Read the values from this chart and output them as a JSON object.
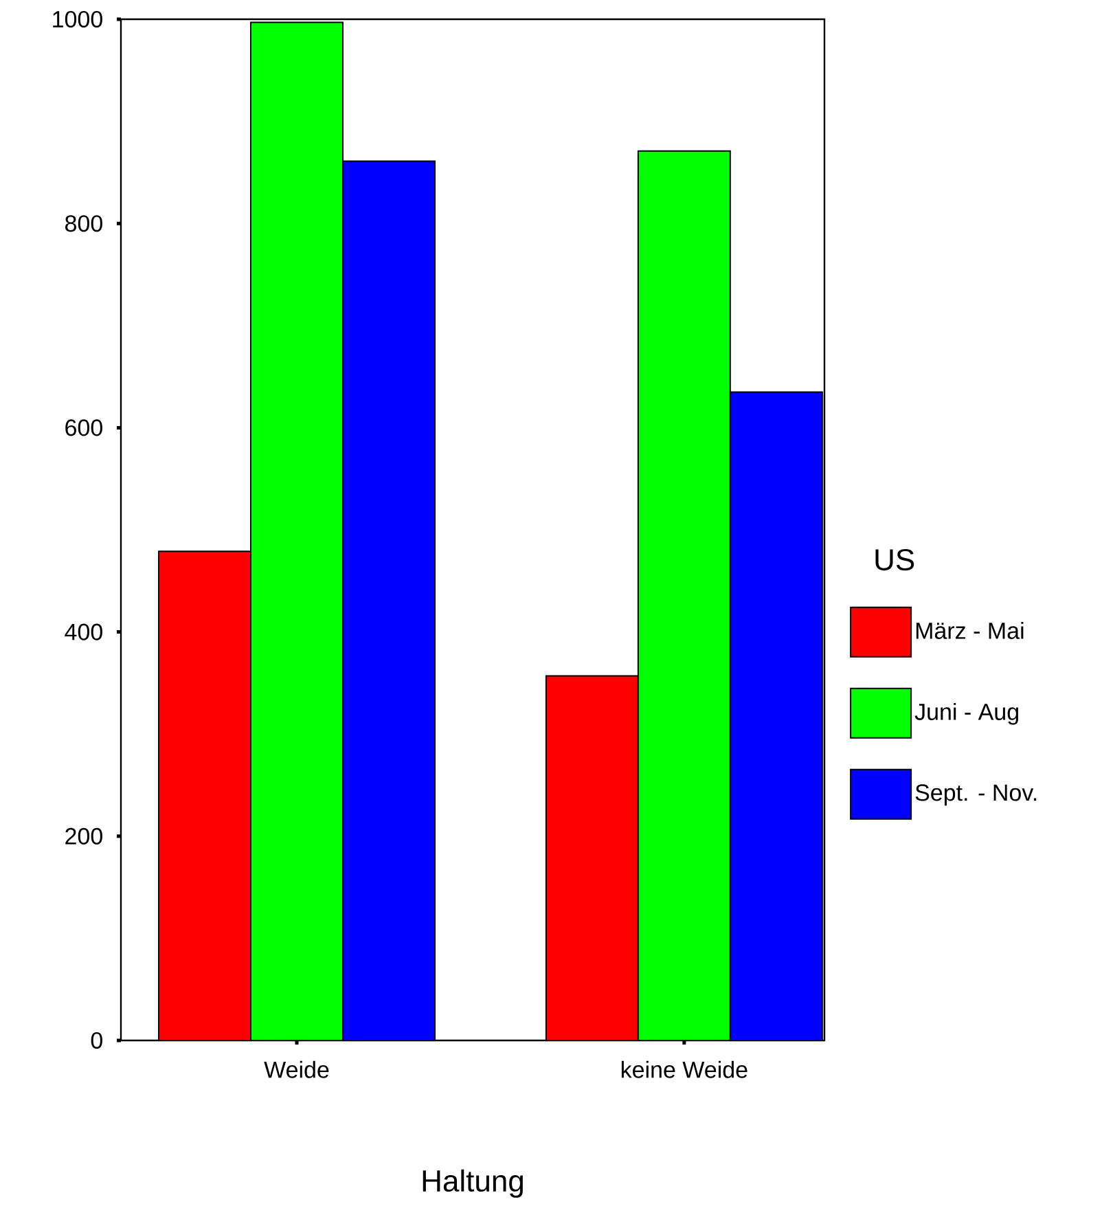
{
  "chart_data": {
    "type": "bar",
    "xlabel": "Haltung",
    "legend_title": "US",
    "legend": "right",
    "categories": [
      "Weide",
      "keine Weide"
    ],
    "series": [
      {
        "name": "März - Mai",
        "color": "#ff0000",
        "values": [
          479,
          357
        ]
      },
      {
        "name": "Juni - Aug",
        "color": "#00ff00",
        "values": [
          997,
          871
        ]
      },
      {
        "name": "Sept. - Nov.",
        "color": "#0000ff",
        "values": [
          861,
          635
        ]
      }
    ],
    "ylim": [
      0,
      1000
    ],
    "yticks": [
      0,
      200,
      400,
      600,
      800,
      1000
    ]
  }
}
